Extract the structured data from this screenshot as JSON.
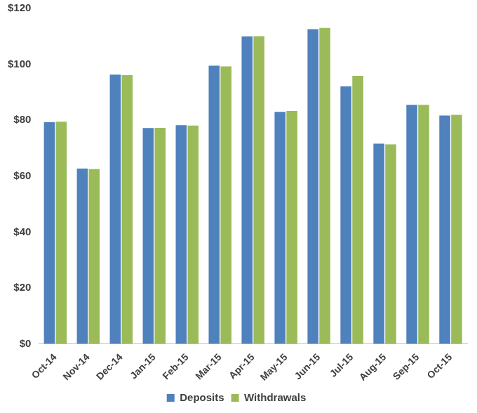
{
  "chart_data": {
    "type": "bar",
    "categories": [
      "Oct-14",
      "Nov-14",
      "Dec-14",
      "Jan-15",
      "Feb-15",
      "Mar-15",
      "Apr-15",
      "May-15",
      "Jun-15",
      "Jul-15",
      "Aug-15",
      "Sep-15",
      "Oct-15"
    ],
    "series": [
      {
        "name": "Deposits",
        "color": "#4f81bd",
        "values": [
          79.3,
          62.7,
          96.3,
          77.2,
          78.2,
          99.5,
          110.0,
          83.0,
          112.6,
          92.1,
          71.6,
          85.5,
          81.7
        ]
      },
      {
        "name": "Withdrawals",
        "color": "#9bbb59",
        "values": [
          79.5,
          62.5,
          96.1,
          77.3,
          78.1,
          99.3,
          110.1,
          83.3,
          113.0,
          95.9,
          71.4,
          85.5,
          81.9
        ]
      }
    ],
    "ylim": [
      0,
      120
    ],
    "yticks": [
      {
        "value": 0,
        "label": "$0"
      },
      {
        "value": 20,
        "label": "$20"
      },
      {
        "value": 40,
        "label": "$40"
      },
      {
        "value": 60,
        "label": "$60"
      },
      {
        "value": 80,
        "label": "$80"
      },
      {
        "value": 100,
        "label": "$100"
      },
      {
        "value": 120,
        "label": "$120"
      }
    ],
    "grid": false,
    "legend": "bottom"
  }
}
